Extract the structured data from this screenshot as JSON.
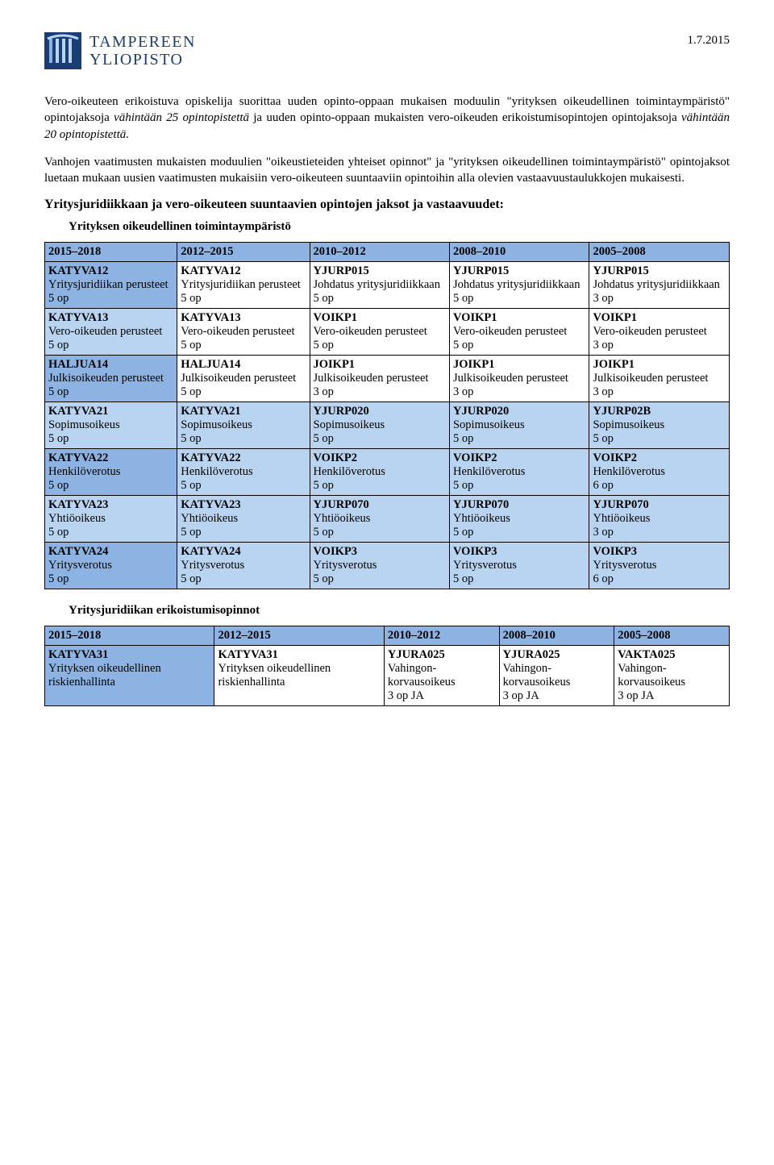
{
  "logo": {
    "line1": "TAMPEREEN",
    "line2": "YLIOPISTO"
  },
  "date": "1.7.2015",
  "para1_a": "Vero-oikeuteen erikoistuva opiskelija suorittaa uuden opinto-oppaan mukaisen moduulin \"yrityksen oikeudellinen toimintaympäristö\" opintojaksoja ",
  "para1_b": "vähintään 25 opintopistettä",
  "para1_c": " ja uuden opinto-oppaan mukaisten vero-oikeuden erikoistumisopintojen opintojaksoja ",
  "para1_d": "vähintään 20 opintopistettä.",
  "para2": "Vanhojen vaatimusten mukaisten moduulien \"oikeustieteiden yhteiset opinnot\" ja \"yrityksen oikeudellinen toimintaympäristö\" opintojaksot luetaan mukaan uusien vaatimusten mukaisiin vero-oikeuteen suuntaaviin opintoihin alla olevien vastaavuustaulukkojen mukaisesti.",
  "heading1": "Yritysjuridiikkaan ja vero-oikeuteen suuntaavien opintojen jaksot ja vastaavuudet:",
  "subheading1": "Yrityksen oikeudellinen toimintaympäristö",
  "subheading2": "Yritysjuridiikan erikoistumisopinnot",
  "t1": {
    "header": [
      "2015–2018",
      "2012–2015",
      "2010–2012",
      "2008–2010",
      "2005–2008"
    ],
    "rows": [
      [
        {
          "code": "KATYVA12",
          "desc": "Yritysjuridiikan perusteet",
          "pts": "5 op"
        },
        {
          "code": "KATYVA12",
          "desc": "Yritysjuridiikan perusteet",
          "pts": "5 op"
        },
        {
          "code": "YJURP015",
          "desc": "Johdatus yritysjuridiikkaan",
          "pts": "5 op"
        },
        {
          "code": "YJURP015",
          "desc": "Johdatus yritysjuridiikkaan",
          "pts": "5 op"
        },
        {
          "code": "YJURP015",
          "desc": "Johdatus yritysjuridiikkaan",
          "pts": "3 op"
        }
      ],
      [
        {
          "code": "KATYVA13",
          "desc": "Vero-oikeuden perusteet",
          "pts": "5 op"
        },
        {
          "code": "KATYVA13",
          "desc": "Vero-oikeuden perusteet",
          "pts": "5 op"
        },
        {
          "code": "VOIKP1",
          "desc": "Vero-oikeuden perusteet",
          "pts": "5 op"
        },
        {
          "code": "VOIKP1",
          "desc": "Vero-oikeuden perusteet",
          "pts": "5 op"
        },
        {
          "code": "VOIKP1",
          "desc": "Vero-oikeuden perusteet",
          "pts": "3 op"
        }
      ],
      [
        {
          "code": "HALJUA14",
          "desc": "Julkisoikeuden perusteet",
          "pts": "5 op"
        },
        {
          "code": "HALJUA14",
          "desc": "Julkisoikeuden perusteet",
          "pts": "5 op"
        },
        {
          "code": "JOIKP1",
          "desc": "Julkisoikeuden perusteet",
          "pts": "3 op"
        },
        {
          "code": "JOIKP1",
          "desc": "Julkisoikeuden perusteet",
          "pts": "3 op"
        },
        {
          "code": "JOIKP1",
          "desc": "Julkisoikeuden perusteet",
          "pts": "3 op"
        }
      ],
      [
        {
          "code": "KATYVA21",
          "desc": "Sopimusoikeus",
          "pts": "5 op"
        },
        {
          "code": "KATYVA21",
          "desc": "Sopimusoikeus",
          "pts": "5 op"
        },
        {
          "code": "YJURP020",
          "desc": "Sopimusoikeus",
          "pts": "5 op"
        },
        {
          "code": "YJURP020",
          "desc": "Sopimusoikeus",
          "pts": "5 op"
        },
        {
          "code": "YJURP02B",
          "desc": "Sopimusoikeus",
          "pts": "5 op"
        }
      ],
      [
        {
          "code": "KATYVA22",
          "desc": "Henkilöverotus",
          "pts": "5 op"
        },
        {
          "code": "KATYVA22",
          "desc": "Henkilöverotus",
          "pts": "5 op"
        },
        {
          "code": "VOIKP2",
          "desc": "Henkilöverotus",
          "pts": "5 op"
        },
        {
          "code": "VOIKP2",
          "desc": "Henkilöverotus",
          "pts": "5 op"
        },
        {
          "code": "VOIKP2",
          "desc": "Henkilöverotus",
          "pts": "6 op"
        }
      ],
      [
        {
          "code": "KATYVA23",
          "desc": "Yhtiöoikeus",
          "pts": "5 op"
        },
        {
          "code": "KATYVA23",
          "desc": "Yhtiöoikeus",
          "pts": "5 op"
        },
        {
          "code": "YJURP070",
          "desc": "Yhtiöoikeus",
          "pts": "5 op"
        },
        {
          "code": "YJURP070",
          "desc": "Yhtiöoikeus",
          "pts": "5 op"
        },
        {
          "code": "YJURP070",
          "desc": "Yhtiöoikeus",
          "pts": "3 op"
        }
      ],
      [
        {
          "code": "KATYVA24",
          "desc": "Yritysverotus",
          "pts": "5 op"
        },
        {
          "code": "KATYVA24",
          "desc": "Yritysverotus",
          "pts": "5 op"
        },
        {
          "code": "VOIKP3",
          "desc": "Yritysverotus",
          "pts": "5 op"
        },
        {
          "code": "VOIKP3",
          "desc": "Yritysverotus",
          "pts": "5 op"
        },
        {
          "code": "VOIKP3",
          "desc": "Yritysverotus",
          "pts": "6 op"
        }
      ]
    ]
  },
  "t2": {
    "header": [
      "2015–2018",
      "2012–2015",
      "2010–2012",
      "2008–2010",
      "2005–2008"
    ],
    "rows": [
      [
        {
          "code": "KATYVA31",
          "desc": "Yrityksen oikeudellinen riskienhallinta",
          "pts": ""
        },
        {
          "code": "KATYVA31",
          "desc": "Yrityksen oikeudellinen riskienhallinta",
          "pts": ""
        },
        {
          "code": "YJURA025",
          "desc": "Vahingon-korvausoikeus",
          "pts": "3 op JA"
        },
        {
          "code": "YJURA025",
          "desc": "Vahingon-korvausoikeus",
          "pts": "3 op JA"
        },
        {
          "code": "VAKTA025",
          "desc": "Vahingon-korvausoikeus",
          "pts": "3 op JA"
        }
      ]
    ]
  },
  "shading": {
    "t1": [
      [
        "darkerblue",
        "whitebg",
        "whitebg",
        "whitebg",
        "whitebg"
      ],
      [
        "lightblue",
        "whitebg",
        "whitebg",
        "whitebg",
        "whitebg"
      ],
      [
        "darkerblue",
        "whitebg",
        "whitebg",
        "whitebg",
        "whitebg"
      ],
      [
        "lightblue",
        "lightblue",
        "lightblue",
        "lightblue",
        "lightblue"
      ],
      [
        "darkerblue",
        "lightblue",
        "lightblue",
        "lightblue",
        "lightblue"
      ],
      [
        "lightblue",
        "lightblue",
        "lightblue",
        "lightblue",
        "lightblue"
      ],
      [
        "darkerblue",
        "lightblue",
        "lightblue",
        "lightblue",
        "lightblue"
      ]
    ],
    "t2": [
      [
        "darkerblue",
        "whitebg",
        "whitebg",
        "whitebg",
        "whitebg"
      ]
    ]
  }
}
